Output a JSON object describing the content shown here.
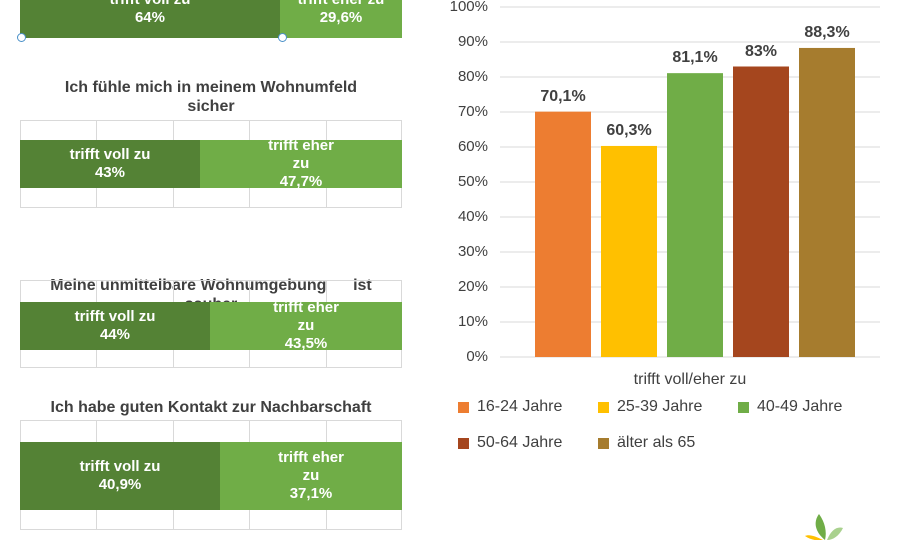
{
  "stacked": {
    "top": {
      "voll_label": "trifft voll zu",
      "voll_value": "64%",
      "eher_label": "trifft eher zu",
      "eher_value": "29,6%"
    },
    "items": [
      {
        "title_line1": "Ich fühle mich in meinem Wohnumfeld",
        "title_line2": "sicher",
        "voll_label": "trifft voll zu",
        "voll_value": "43%",
        "eher_line1": "trifft eher",
        "eher_line2": "zu",
        "eher_value": "47,7%"
      },
      {
        "title_line1": "Meine unmittelbare Wohnumgebung      ist",
        "title_line2": "sauber",
        "voll_label": "trifft voll zu",
        "voll_value": "44%",
        "eher_line1": "trifft eher",
        "eher_line2": "zu",
        "eher_value": "43,5%"
      },
      {
        "title_line1": "Ich habe guten Kontakt zur Nachbarschaft",
        "title_line2": "",
        "voll_label": "trifft voll zu",
        "voll_value": "40,9%",
        "eher_line1": "trifft eher",
        "eher_line2": "zu",
        "eher_value": "37,1%"
      }
    ],
    "colors": {
      "voll": "#548235",
      "eher": "#70ad47"
    }
  },
  "chart_data": [
    {
      "type": "bar",
      "title": "",
      "orientation": "horizontal-stacked",
      "categories": [
        "",
        "Ich fühle mich in meinem Wohnumfeld sicher",
        "Meine unmittelbare Wohnumgebung ist sauber",
        "Ich habe guten Kontakt zur Nachbarschaft"
      ],
      "series": [
        {
          "name": "trifft voll zu",
          "values": [
            64,
            43,
            44,
            40.9
          ]
        },
        {
          "name": "trifft eher zu",
          "values": [
            29.6,
            47.7,
            43.5,
            37.1
          ]
        }
      ],
      "xlim": [
        0,
        100
      ]
    },
    {
      "type": "bar",
      "title": "",
      "xlabel": "trifft voll/eher zu",
      "ylabel": "",
      "ylim": [
        0,
        100
      ],
      "y_ticks": [
        "0%",
        "10%",
        "20%",
        "30%",
        "40%",
        "50%",
        "60%",
        "70%",
        "80%",
        "90%",
        "100%"
      ],
      "categories": [
        "trifft voll/eher zu"
      ],
      "series": [
        {
          "name": "16-24 Jahre",
          "values": [
            70.1
          ],
          "label": "70,1%",
          "color": "#ed7d31"
        },
        {
          "name": "25-39 Jahre",
          "values": [
            60.3
          ],
          "label": "60,3%",
          "color": "#ffc000"
        },
        {
          "name": "40-49 Jahre",
          "values": [
            81.1
          ],
          "label": "81,1%",
          "color": "#70ad47"
        },
        {
          "name": "50-64 Jahre",
          "values": [
            83
          ],
          "label": "83%",
          "color": "#a5461e"
        },
        {
          "name": "älter als 65",
          "values": [
            88.3
          ],
          "label": "88,3%",
          "color": "#a67c2e"
        }
      ],
      "grid": true,
      "legend_position": "bottom"
    }
  ]
}
